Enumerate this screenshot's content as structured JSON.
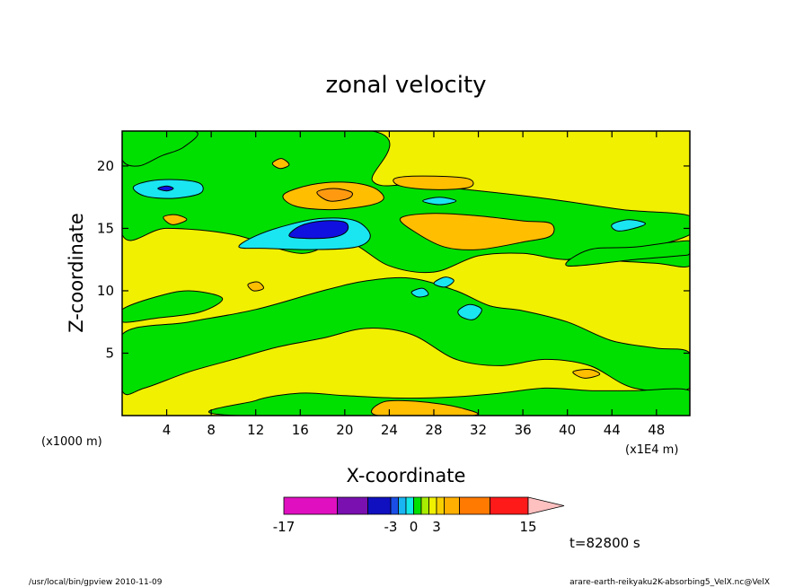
{
  "chart_data": {
    "type": "heatmap",
    "subtype": "filled-contour",
    "title": "zonal velocity",
    "xlabel": "X-coordinate",
    "ylabel": "Z-coordinate",
    "x_unit_note": "(x1E4 m)",
    "y_unit_note": "(x1000 m)",
    "xlim": [
      0,
      51
    ],
    "ylim": [
      0,
      22.8
    ],
    "x_ticks": [
      4,
      8,
      12,
      16,
      20,
      24,
      28,
      32,
      36,
      40,
      44,
      48
    ],
    "y_ticks": [
      5,
      10,
      15,
      20
    ],
    "time_label": "t=82800 s",
    "colorbar": {
      "tick_labels": [
        "-17",
        "-3",
        "0",
        "3",
        "15"
      ],
      "levels": [
        -17,
        -10,
        -6,
        -3,
        -2,
        -1,
        0,
        1,
        2,
        3,
        4,
        6,
        10,
        15
      ],
      "colors": [
        "#e010c0",
        "#7a10b0",
        "#1010c0",
        "#1a4ee6",
        "#19b4f2",
        "#13e7e7",
        "#00e000",
        "#a8ec00",
        "#f0f000",
        "#f8d000",
        "#ffb000",
        "#ff7a00",
        "#ff1a1a",
        "#ff8080",
        "#ffc0c0"
      ]
    },
    "fill_colors": {
      "background_low": "#f0f000",
      "moderate_positive": "#00e000",
      "strong_positive": "#ffbe00",
      "stronger_positive": "#ff9a10",
      "weak_negative": "#19e6f0",
      "strong_negative": "#1010e0"
    },
    "field_regions": [
      {
        "level": "moderate_positive",
        "shape": [
          [
            0,
            22.8
          ],
          [
            22.5,
            22.8
          ],
          [
            22.5,
            18.8
          ],
          [
            26,
            18.5
          ],
          [
            30,
            18.2
          ],
          [
            38,
            17.4
          ],
          [
            45,
            16.5
          ],
          [
            51,
            16
          ],
          [
            51,
            14.5
          ],
          [
            45,
            13
          ],
          [
            40,
            12.5
          ],
          [
            36,
            13
          ],
          [
            32,
            12.8
          ],
          [
            28,
            11.5
          ],
          [
            24,
            12
          ],
          [
            20,
            14
          ],
          [
            16,
            13
          ],
          [
            10,
            14.5
          ],
          [
            4,
            15
          ],
          [
            0,
            14.5
          ]
        ]
      },
      {
        "level": "moderate_positive",
        "shape": [
          [
            0,
            6.5
          ],
          [
            6,
            7.5
          ],
          [
            12,
            8.5
          ],
          [
            18,
            10
          ],
          [
            22,
            10.8
          ],
          [
            26,
            11
          ],
          [
            30,
            10
          ],
          [
            33,
            8.8
          ],
          [
            36,
            8.4
          ],
          [
            40,
            7.5
          ],
          [
            44,
            6
          ],
          [
            48,
            5.4
          ],
          [
            51,
            5
          ],
          [
            51,
            2.2
          ],
          [
            46,
            2.2
          ],
          [
            42,
            4
          ],
          [
            38,
            4.5
          ],
          [
            34,
            4
          ],
          [
            30,
            4.5
          ],
          [
            26,
            6.5
          ],
          [
            22,
            7
          ],
          [
            18,
            6.2
          ],
          [
            14,
            5.5
          ],
          [
            10,
            4.5
          ],
          [
            6,
            3.5
          ],
          [
            2,
            2.2
          ],
          [
            0,
            2
          ]
        ]
      },
      {
        "level": "moderate_positive",
        "shape": [
          [
            0,
            8.5
          ],
          [
            3,
            9.5
          ],
          [
            6,
            10
          ],
          [
            9,
            9.4
          ],
          [
            7,
            8.3
          ],
          [
            3,
            7.8
          ],
          [
            0,
            7.5
          ]
        ]
      },
      {
        "level": "moderate_positive",
        "shape": [
          [
            10.5,
            0
          ],
          [
            51,
            0
          ],
          [
            51,
            2
          ],
          [
            46,
            2
          ],
          [
            42,
            2
          ],
          [
            38,
            2.2
          ],
          [
            34,
            1.8
          ],
          [
            30,
            1.5
          ],
          [
            25,
            1.4
          ],
          [
            20,
            1.6
          ],
          [
            16,
            1.8
          ],
          [
            12,
            1.2
          ]
        ]
      },
      {
        "level": "moderate_positive",
        "shape": [
          [
            40,
            12.5
          ],
          [
            44,
            12.4
          ],
          [
            48,
            12.2
          ],
          [
            51,
            12
          ],
          [
            51,
            13.8
          ],
          [
            48,
            13
          ],
          [
            44,
            12.8
          ]
        ]
      },
      {
        "level": "moderate_positive",
        "shape": [
          [
            0,
            22.8
          ],
          [
            6.5,
            22.8
          ],
          [
            5.5,
            21.5
          ],
          [
            3.5,
            20.8
          ],
          [
            1.5,
            20
          ],
          [
            0,
            20.5
          ]
        ]
      },
      {
        "level": "moderate_positive",
        "shape": [
          [
            40,
            12
          ],
          [
            46,
            12.5
          ],
          [
            50,
            12.8
          ],
          [
            51,
            13
          ],
          [
            51,
            14
          ],
          [
            46,
            13.5
          ],
          [
            42,
            13.3
          ]
        ]
      },
      {
        "level": "weak_negative",
        "shape": [
          [
            10.5,
            13.5
          ],
          [
            12,
            14.4
          ],
          [
            15,
            15.3
          ],
          [
            18,
            15.8
          ],
          [
            21,
            15.6
          ],
          [
            22.3,
            14.4
          ],
          [
            21,
            13.5
          ],
          [
            17,
            13.3
          ],
          [
            13,
            13.4
          ]
        ]
      },
      {
        "level": "strong_negative",
        "shape": [
          [
            15,
            14.4
          ],
          [
            16,
            15.2
          ],
          [
            18,
            15.6
          ],
          [
            20,
            15.5
          ],
          [
            20.2,
            14.8
          ],
          [
            19,
            14.3
          ],
          [
            16.5,
            14.2
          ]
        ]
      },
      {
        "level": "weak_negative",
        "shape": [
          [
            1,
            18.3
          ],
          [
            2.5,
            18.8
          ],
          [
            5,
            18.9
          ],
          [
            7,
            18.6
          ],
          [
            7,
            17.8
          ],
          [
            4.5,
            17.4
          ],
          [
            2,
            17.6
          ]
        ]
      },
      {
        "level": "strong_negative",
        "shape": [
          [
            3.2,
            18.2
          ],
          [
            4,
            18.4
          ],
          [
            4.6,
            18.2
          ],
          [
            4,
            18
          ]
        ]
      },
      {
        "level": "strong_positive",
        "shape": [
          [
            14.5,
            17.7
          ],
          [
            17,
            18.5
          ],
          [
            20,
            18.7
          ],
          [
            22.5,
            18.3
          ],
          [
            23.5,
            17.4
          ],
          [
            22,
            16.8
          ],
          [
            18.5,
            16.5
          ],
          [
            15.5,
            16.8
          ]
        ]
      },
      {
        "level": "stronger_positive",
        "shape": [
          [
            17.5,
            17.9
          ],
          [
            19,
            18.2
          ],
          [
            20.6,
            17.9
          ],
          [
            20.3,
            17.4
          ],
          [
            18.6,
            17.2
          ]
        ]
      },
      {
        "level": "strong_positive",
        "shape": [
          [
            25,
            15.8
          ],
          [
            28,
            16.2
          ],
          [
            32,
            16
          ],
          [
            36,
            15.6
          ],
          [
            38.5,
            15.4
          ],
          [
            38.5,
            14.4
          ],
          [
            36,
            13.9
          ],
          [
            32,
            13.3
          ],
          [
            29,
            13.5
          ],
          [
            26.5,
            14.6
          ]
        ]
      },
      {
        "level": "strong_positive",
        "shape": [
          [
            24.5,
            19
          ],
          [
            27,
            19.2
          ],
          [
            31,
            19
          ],
          [
            31.2,
            18.3
          ],
          [
            28,
            18.1
          ],
          [
            25,
            18.4
          ]
        ]
      },
      {
        "level": "weak_negative",
        "shape": [
          [
            27,
            17.2
          ],
          [
            28.5,
            17.5
          ],
          [
            30,
            17.2
          ],
          [
            28.5,
            16.9
          ]
        ]
      },
      {
        "level": "weak_negative",
        "shape": [
          [
            44,
            15.3
          ],
          [
            45.5,
            15.7
          ],
          [
            47,
            15.4
          ],
          [
            46,
            15
          ],
          [
            44.5,
            14.8
          ]
        ]
      },
      {
        "level": "weak_negative",
        "shape": [
          [
            30.2,
            8.4
          ],
          [
            31.2,
            8.9
          ],
          [
            32.3,
            8.5
          ],
          [
            31.6,
            7.7
          ],
          [
            30.5,
            7.9
          ]
        ]
      },
      {
        "level": "weak_negative",
        "shape": [
          [
            28,
            10.6
          ],
          [
            29,
            11.1
          ],
          [
            29.8,
            10.8
          ],
          [
            29,
            10.3
          ]
        ]
      },
      {
        "level": "weak_negative",
        "shape": [
          [
            26,
            9.9
          ],
          [
            27,
            10.2
          ],
          [
            27.5,
            9.7
          ],
          [
            26.6,
            9.5
          ]
        ]
      },
      {
        "level": "strong_positive",
        "shape": [
          [
            23.5,
            1.1
          ],
          [
            27,
            1.1
          ],
          [
            30.5,
            0.6
          ],
          [
            31.5,
            0
          ],
          [
            23,
            0
          ]
        ]
      },
      {
        "level": "strong_positive",
        "shape": [
          [
            40.5,
            3.5
          ],
          [
            42,
            3.7
          ],
          [
            42.9,
            3.3
          ],
          [
            41.5,
            3
          ]
        ]
      },
      {
        "level": "strong_positive",
        "shape": [
          [
            3.7,
            15.9
          ],
          [
            4.8,
            16.1
          ],
          [
            5.8,
            15.7
          ],
          [
            4.5,
            15.3
          ]
        ]
      },
      {
        "level": "strong_positive",
        "shape": [
          [
            11.3,
            10.5
          ],
          [
            12.2,
            10.7
          ],
          [
            12.7,
            10.2
          ],
          [
            11.8,
            10
          ]
        ]
      },
      {
        "level": "strong_positive",
        "shape": [
          [
            13.5,
            20.2
          ],
          [
            14.3,
            20.6
          ],
          [
            15,
            20.1
          ],
          [
            14.2,
            19.8
          ]
        ]
      }
    ]
  },
  "footer": {
    "left": "/usr/local/bin/gpview  2010-11-09",
    "right": "arare-earth-reikyaku2K-absorbing5_VelX.nc@VelX"
  }
}
